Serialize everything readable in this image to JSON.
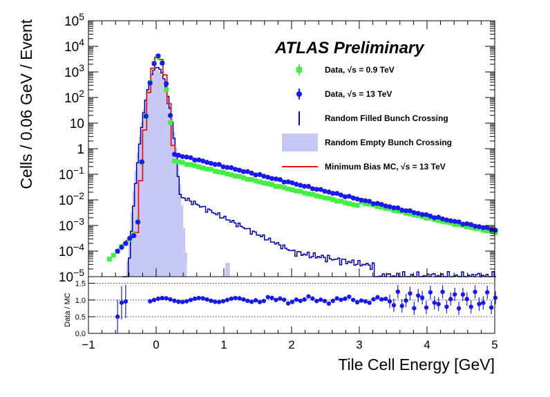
{
  "chart_data": {
    "type": "line",
    "title": "ATLAS Preliminary",
    "xlabel": "Tile Cell Energy [GeV]",
    "ylabel": "Cells / 0.06 GeV / Event",
    "ratio_ylabel": "Data / MC",
    "x_range": [
      -1,
      5
    ],
    "y_range_log": [
      1e-05,
      100000.0
    ],
    "ratio_range": [
      0,
      1.7
    ],
    "x_ticks": [
      "−1",
      "0",
      "1",
      "2",
      "3",
      "4",
      "5"
    ],
    "y_ticks": [
      {
        "v": 100000.0,
        "base": "10",
        "exp": "5"
      },
      {
        "v": 10000.0,
        "base": "10",
        "exp": "4"
      },
      {
        "v": 1000.0,
        "base": "10",
        "exp": "3"
      },
      {
        "v": 100.0,
        "base": "10",
        "exp": "2"
      },
      {
        "v": 10,
        "base": "10",
        "exp": ""
      },
      {
        "v": 1,
        "base": "1",
        "exp": ""
      },
      {
        "v": 0.1,
        "base": "10",
        "exp": "−1"
      },
      {
        "v": 0.01,
        "base": "10",
        "exp": "−2"
      },
      {
        "v": 0.001,
        "base": "10",
        "exp": "−3"
      },
      {
        "v": 0.0001,
        "base": "10",
        "exp": "−4"
      },
      {
        "v": 1e-05,
        "base": "10",
        "exp": "−5"
      }
    ],
    "ratio_ticks": [
      "1.5",
      "1.0",
      "0.5",
      "0.0"
    ],
    "legend": [
      {
        "key": "data09",
        "label": "Data,  √s = 0.9 TeV",
        "color": "#44ee44"
      },
      {
        "key": "data13",
        "label": "Data,  √s = 13 TeV",
        "color": "#1a1aee"
      },
      {
        "key": "rfilled",
        "label": "Random Filled Bunch Crossing",
        "color": "#0000aa"
      },
      {
        "key": "rempty",
        "label": "Random Empty Bunch Crossing",
        "color": "#c8c8f5"
      },
      {
        "key": "mc",
        "label": "Minimum Bias MC,  √s = 13 TeV",
        "color": "#ee1111"
      }
    ],
    "series_shapes": {
      "peak_x": 0.0,
      "data13_peak": 4000,
      "data09_tail_scale": 0.55,
      "rfilled_peak": 1500,
      "rempty_peak": 1200
    }
  }
}
